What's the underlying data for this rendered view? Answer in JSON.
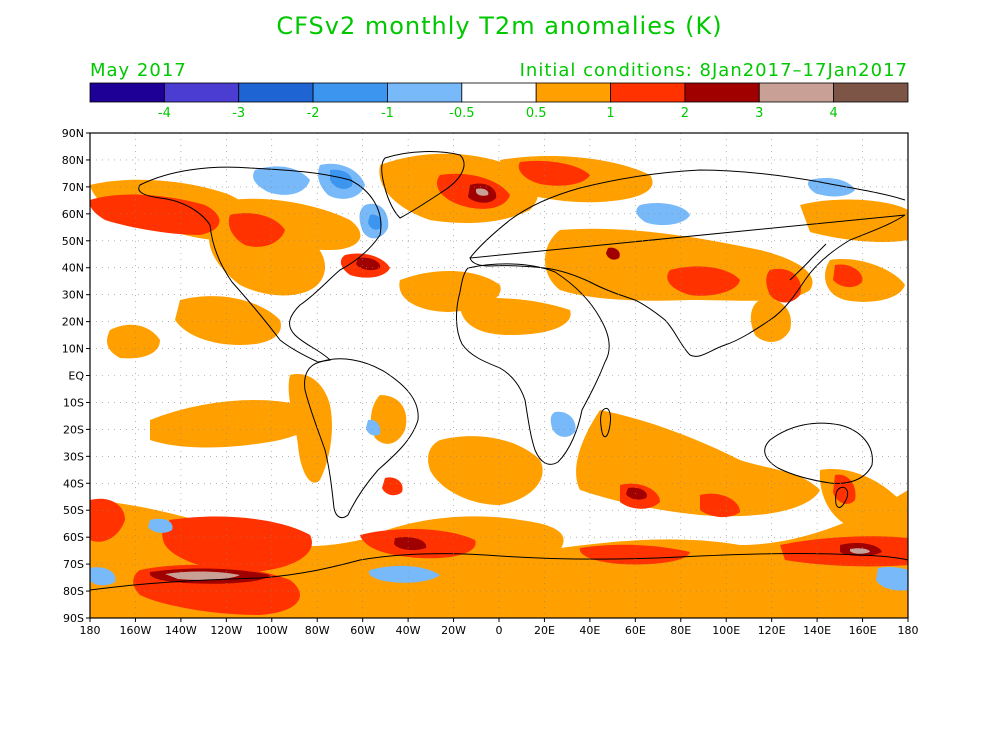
{
  "title": "CFSv2 monthly T2m anomalies (K)",
  "subtitle_left": "May 2017",
  "subtitle_right": "Initial conditions: 8Jan2017–17Jan2017",
  "colorbar": {
    "colors": [
      "#1e0096",
      "#4b3cd2",
      "#1e64d2",
      "#3c96f0",
      "#78b9fa",
      "#ffffff",
      "#ffa000",
      "#ff3200",
      "#a00000",
      "#c8a096",
      "#7d5546"
    ],
    "labels": [
      "-4",
      "-3",
      "-2",
      "-1",
      "-0.5",
      "0.5",
      "1",
      "2",
      "3",
      "4"
    ]
  },
  "axes": {
    "lat_labels": [
      "90N",
      "80N",
      "70N",
      "60N",
      "50N",
      "40N",
      "30N",
      "20N",
      "10N",
      "EQ",
      "10S",
      "20S",
      "30S",
      "40S",
      "50S",
      "60S",
      "70S",
      "80S",
      "90S"
    ],
    "lon_labels": [
      "180",
      "160W",
      "140W",
      "120W",
      "100W",
      "80W",
      "60W",
      "40W",
      "20W",
      "0",
      "20E",
      "40E",
      "60E",
      "80E",
      "100E",
      "120E",
      "140E",
      "160E",
      "180"
    ]
  }
}
